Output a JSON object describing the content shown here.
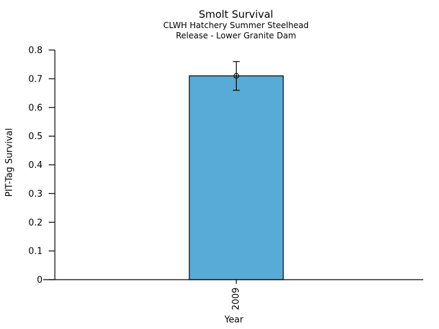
{
  "chart_data": {
    "type": "bar",
    "title": "Smolt Survival",
    "subtitle": [
      "CLWH Hatchery Summer Steelhead",
      "Release - Lower Granite Dam"
    ],
    "xlabel": "Year",
    "ylabel": "PIT-Tag Survival",
    "categories": [
      "2009"
    ],
    "values": [
      0.71
    ],
    "error_bars": {
      "low": [
        0.66
      ],
      "high": [
        0.76
      ]
    },
    "ylim": [
      0,
      0.8
    ],
    "yticks": [
      0,
      0.1,
      0.2,
      0.3,
      0.4,
      0.5,
      0.6,
      0.7,
      0.8
    ],
    "ytick_labels": [
      "0",
      "0.1",
      "0.2",
      "0.3",
      "0.4",
      "0.5",
      "0.6",
      "0.7",
      "0.8"
    ],
    "grid": false,
    "legend": null,
    "marker": "open-circle",
    "colors": {
      "bar_fill": "#58ABD6",
      "bar_edge": "#000000",
      "error": "#000000",
      "axis": "#000000",
      "text": "#000000",
      "background": "#FFFFFF"
    }
  }
}
